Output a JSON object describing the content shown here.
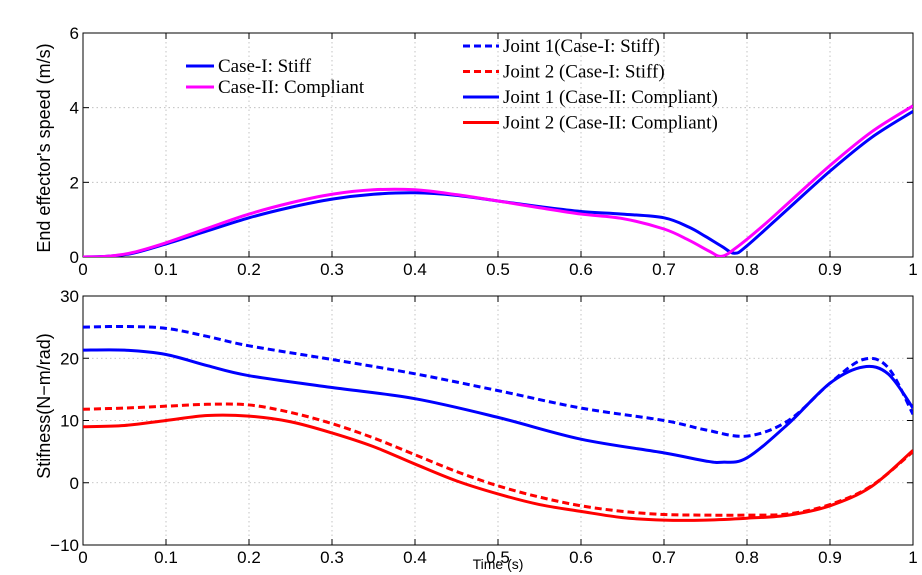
{
  "chart_data": [
    {
      "type": "line",
      "title": "",
      "xlabel": "",
      "ylabel": "End effector's speed (m/s)",
      "xlim": [
        0,
        1
      ],
      "ylim": [
        0,
        6
      ],
      "xticks": [
        "0",
        "0.1",
        "0.2",
        "0.3",
        "0.4",
        "0.5",
        "0.6",
        "0.7",
        "0.8",
        "0.9",
        "1"
      ],
      "yticks": [
        "0",
        "2",
        "4",
        "6"
      ],
      "grid": true,
      "legend_position": "top-left",
      "series": [
        {
          "name": "Case-I: Stiff",
          "color": "#0000ff",
          "dash": "solid",
          "x": [
            0,
            0.03,
            0.06,
            0.1,
            0.15,
            0.2,
            0.25,
            0.3,
            0.35,
            0.4,
            0.45,
            0.5,
            0.55,
            0.6,
            0.65,
            0.7,
            0.73,
            0.75,
            0.77,
            0.785,
            0.8,
            0.85,
            0.9,
            0.95,
            1.0
          ],
          "y": [
            0,
            0.02,
            0.1,
            0.35,
            0.7,
            1.05,
            1.33,
            1.55,
            1.68,
            1.72,
            1.65,
            1.5,
            1.35,
            1.22,
            1.15,
            1.05,
            0.8,
            0.55,
            0.28,
            0.1,
            0.3,
            1.3,
            2.3,
            3.2,
            3.9
          ]
        },
        {
          "name": "Case-II: Compliant",
          "color": "#ff00ff",
          "dash": "solid",
          "x": [
            0,
            0.03,
            0.06,
            0.1,
            0.15,
            0.2,
            0.25,
            0.3,
            0.35,
            0.4,
            0.45,
            0.5,
            0.55,
            0.6,
            0.65,
            0.7,
            0.73,
            0.755,
            0.77,
            0.79,
            0.82,
            0.85,
            0.9,
            0.95,
            1.0
          ],
          "y": [
            0,
            0.02,
            0.12,
            0.38,
            0.77,
            1.15,
            1.45,
            1.68,
            1.8,
            1.8,
            1.67,
            1.5,
            1.32,
            1.15,
            1.03,
            0.75,
            0.45,
            0.15,
            0.02,
            0.3,
            0.85,
            1.45,
            2.45,
            3.35,
            4.05
          ]
        }
      ]
    },
    {
      "type": "line",
      "title": "",
      "xlabel": "Time (s)",
      "ylabel": "Stifness(N−m/rad)",
      "xlim": [
        0,
        1
      ],
      "ylim": [
        -10,
        30
      ],
      "xticks": [
        "0",
        "0.1",
        "0.2",
        "0.3",
        "0.4",
        "0.5",
        "0.6",
        "0.7",
        "0.8",
        "0.9",
        "1"
      ],
      "yticks": [
        "−10",
        "0",
        "10",
        "20",
        "30"
      ],
      "grid": true,
      "legend_position": "top-center",
      "series": [
        {
          "name": "Joint 1(Case-I: Stiff)",
          "color": "#0000ff",
          "dash": "dashed",
          "x": [
            0,
            0.05,
            0.1,
            0.15,
            0.2,
            0.3,
            0.4,
            0.5,
            0.6,
            0.7,
            0.75,
            0.8,
            0.85,
            0.9,
            0.94,
            0.97,
            1.0
          ],
          "y": [
            25,
            25.1,
            24.8,
            23.5,
            22,
            19.8,
            17.5,
            14.8,
            12,
            10,
            8.5,
            7.5,
            10,
            16,
            19.8,
            18.5,
            11
          ]
        },
        {
          "name": "Joint 2 (Case-I: Stiff)",
          "color": "#ff0000",
          "dash": "dashed",
          "x": [
            0,
            0.05,
            0.1,
            0.15,
            0.2,
            0.25,
            0.3,
            0.35,
            0.4,
            0.45,
            0.5,
            0.55,
            0.6,
            0.65,
            0.7,
            0.75,
            0.8,
            0.85,
            0.9,
            0.95,
            1.0
          ],
          "y": [
            11.8,
            12,
            12.3,
            12.6,
            12.5,
            11.3,
            9.5,
            7.2,
            4.5,
            1.8,
            -0.5,
            -2.3,
            -3.7,
            -4.6,
            -5.1,
            -5.2,
            -5.2,
            -5,
            -3.5,
            -0.5,
            5
          ]
        },
        {
          "name": "Joint 1 (Case-II: Compliant)",
          "color": "#0000ff",
          "dash": "solid",
          "x": [
            0,
            0.05,
            0.1,
            0.15,
            0.2,
            0.3,
            0.4,
            0.5,
            0.6,
            0.7,
            0.75,
            0.77,
            0.8,
            0.85,
            0.9,
            0.94,
            0.97,
            1.0
          ],
          "y": [
            21.3,
            21.3,
            20.6,
            18.8,
            17.2,
            15.3,
            13.5,
            10.5,
            7,
            4.8,
            3.5,
            3.3,
            4,
            9.5,
            16,
            18.6,
            17.5,
            12
          ]
        },
        {
          "name": "Joint 2 (Case-II: Compliant)",
          "color": "#ff0000",
          "dash": "solid",
          "x": [
            0,
            0.05,
            0.1,
            0.15,
            0.2,
            0.25,
            0.3,
            0.35,
            0.4,
            0.45,
            0.5,
            0.55,
            0.6,
            0.65,
            0.7,
            0.75,
            0.8,
            0.85,
            0.9,
            0.95,
            1.0
          ],
          "y": [
            9,
            9.2,
            10,
            10.8,
            10.7,
            9.8,
            8,
            5.8,
            3,
            0.3,
            -1.8,
            -3.5,
            -4.6,
            -5.6,
            -6,
            -6,
            -5.7,
            -5.2,
            -3.7,
            -0.6,
            5.2
          ]
        }
      ]
    }
  ]
}
